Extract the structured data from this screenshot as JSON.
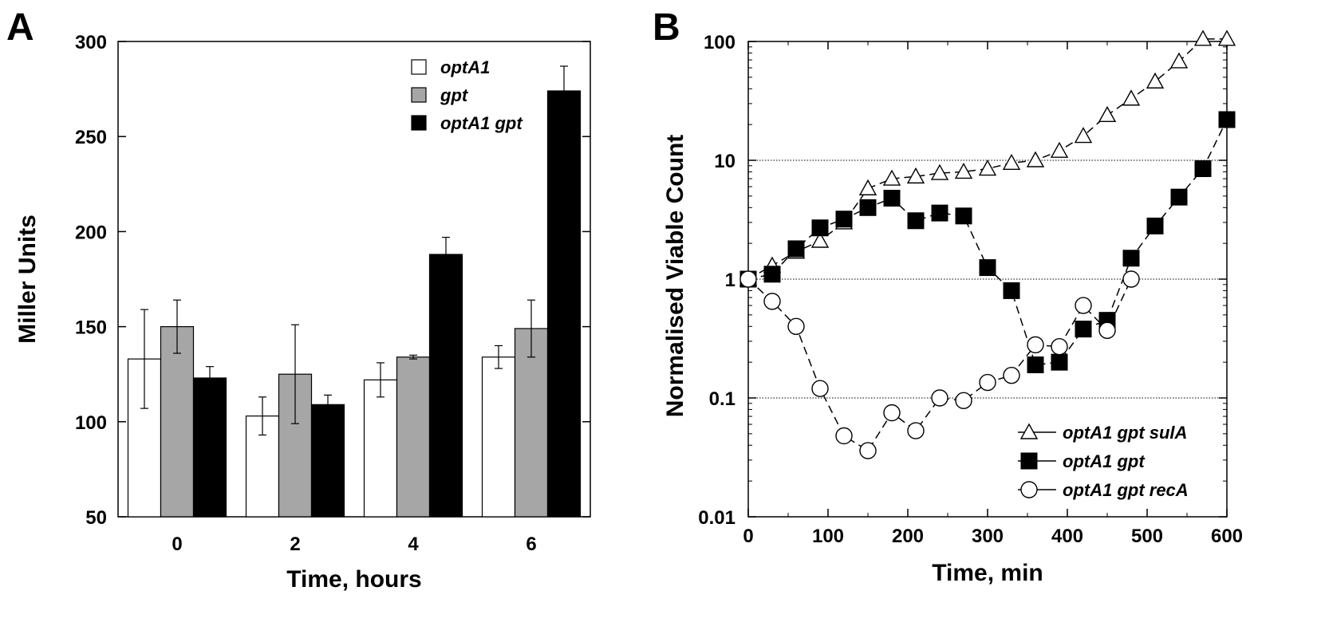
{
  "chart_data": [
    {
      "panel": "A",
      "type": "bar",
      "categories": [
        "0",
        "2",
        "4",
        "6"
      ],
      "xlabel": "Time, hours",
      "ylabel": "Miller Units",
      "ylim": [
        50,
        300
      ],
      "yticks": [
        50,
        100,
        150,
        200,
        250,
        300
      ],
      "grid": false,
      "legend_position": "top-right",
      "series": [
        {
          "name": "optA1",
          "color": "#ffffff",
          "values": [
            133,
            103,
            122,
            134
          ],
          "errors": [
            26,
            10,
            9,
            6
          ]
        },
        {
          "name": "gpt",
          "color": "#a6a6a6",
          "values": [
            150,
            125,
            134,
            149
          ],
          "errors": [
            14,
            26,
            1,
            15
          ]
        },
        {
          "name": "optA1 gpt",
          "color": "#000000",
          "values": [
            123,
            109,
            188,
            274
          ],
          "errors": [
            6,
            5,
            9,
            13
          ]
        }
      ]
    },
    {
      "panel": "B",
      "type": "line",
      "xlabel": "Time, min",
      "ylabel": "Normalised Viable Count",
      "xlim": [
        0,
        600
      ],
      "ylim": [
        0.01,
        100
      ],
      "yscale": "log",
      "xticks": [
        0,
        100,
        200,
        300,
        400,
        500,
        600
      ],
      "yticks": [
        "0.01",
        "0.1",
        "1",
        "10",
        "100"
      ],
      "grid": "horizontal dotted",
      "legend_position": "bottom-right",
      "series": [
        {
          "name": "optA1 gpt sulA",
          "marker": "triangle-open",
          "x": [
            0,
            30,
            60,
            90,
            120,
            150,
            180,
            210,
            240,
            270,
            300,
            330,
            360,
            390,
            420,
            450,
            480,
            510,
            540,
            570,
            600
          ],
          "y": [
            1.0,
            1.3,
            1.7,
            2.1,
            3.0,
            5.8,
            7.0,
            7.3,
            7.8,
            8.0,
            8.5,
            9.5,
            10,
            12,
            16,
            24,
            33,
            46,
            68,
            105,
            105
          ]
        },
        {
          "name": "optA1 gpt",
          "marker": "square-filled",
          "x": [
            0,
            30,
            60,
            90,
            120,
            150,
            180,
            210,
            240,
            270,
            300,
            330,
            360,
            390,
            420,
            450,
            480,
            510,
            540,
            570,
            600
          ],
          "y": [
            1.0,
            1.1,
            1.8,
            2.7,
            3.2,
            4.0,
            4.8,
            3.1,
            3.6,
            3.4,
            1.25,
            0.8,
            0.19,
            0.2,
            0.38,
            0.45,
            1.5,
            2.8,
            4.9,
            8.5,
            22
          ]
        },
        {
          "name": "optA1 gpt recA",
          "marker": "circle-open",
          "x": [
            0,
            30,
            60,
            90,
            120,
            150,
            180,
            210,
            240,
            270,
            300,
            330,
            360,
            390,
            420,
            450,
            480
          ],
          "y": [
            1.0,
            0.65,
            0.4,
            0.12,
            0.048,
            0.036,
            0.075,
            0.053,
            0.1,
            0.095,
            0.135,
            0.155,
            0.28,
            0.27,
            0.6,
            0.37,
            1.0
          ]
        }
      ]
    }
  ]
}
